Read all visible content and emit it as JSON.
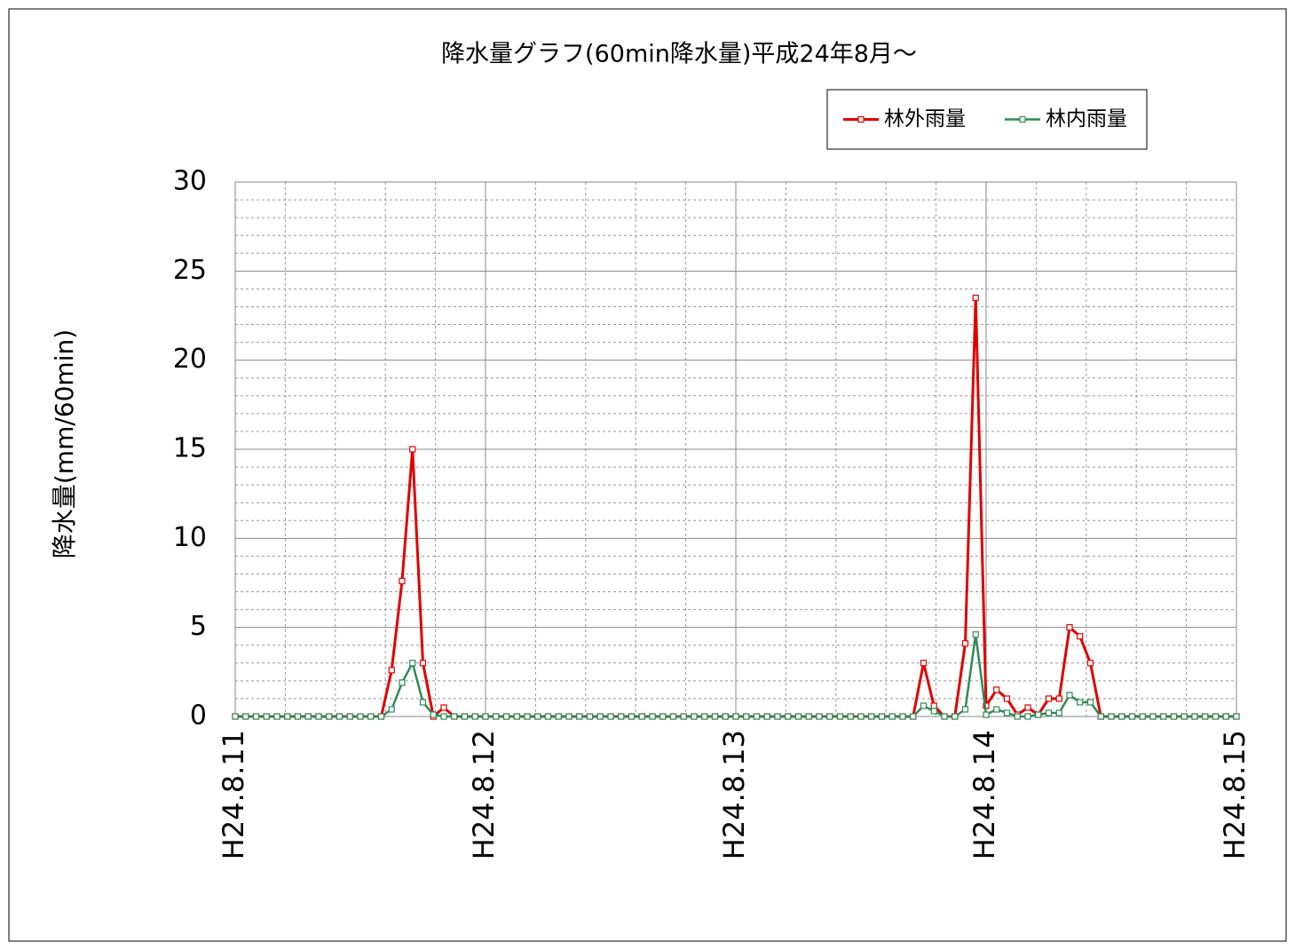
{
  "chart_data": {
    "type": "line",
    "title": "降水量グラフ(60min降水量)平成24年8月～",
    "y_label": "降水量(mm/60min)",
    "categories": [
      "H24.8.11",
      null,
      null,
      null,
      null,
      null,
      null,
      null,
      null,
      null,
      null,
      null,
      null,
      null,
      null,
      null,
      null,
      null,
      null,
      null,
      null,
      null,
      null,
      null,
      "H24.8.12",
      null,
      null,
      null,
      null,
      null,
      null,
      null,
      null,
      null,
      null,
      null,
      null,
      null,
      null,
      null,
      null,
      null,
      null,
      null,
      null,
      null,
      null,
      null,
      "H24.8.13",
      null,
      null,
      null,
      null,
      null,
      null,
      null,
      null,
      null,
      null,
      null,
      null,
      null,
      null,
      null,
      null,
      null,
      null,
      null,
      null,
      null,
      null,
      null,
      "H24.8.14",
      null,
      null,
      null,
      null,
      null,
      null,
      null,
      null,
      null,
      null,
      null,
      null,
      null,
      null,
      null,
      null,
      null,
      null,
      null,
      null,
      null,
      null,
      null,
      "H24.8.15"
    ],
    "series": [
      {
        "name": "林外雨量",
        "color": "#e00000",
        "values": [
          0,
          0,
          0,
          0,
          0,
          0,
          0,
          0,
          0,
          0,
          0,
          0,
          0,
          0,
          0,
          2.6,
          7.6,
          15,
          3,
          0,
          0.5,
          0,
          0,
          0,
          0,
          0,
          0,
          0,
          0,
          0,
          0,
          0,
          0,
          0,
          0,
          0,
          0,
          0,
          0,
          0,
          0,
          0,
          0,
          0,
          0,
          0,
          0,
          0,
          0,
          0,
          0,
          0,
          0,
          0,
          0,
          0,
          0,
          0,
          0,
          0,
          0,
          0,
          0,
          0,
          0,
          0,
          3,
          0.6,
          0,
          0,
          4.1,
          23.5,
          0.6,
          1.5,
          1,
          0.1,
          0.5,
          0.1,
          1,
          1,
          5,
          4.5,
          3,
          0,
          0,
          0,
          0,
          0,
          0,
          0,
          0,
          0,
          0,
          0,
          0,
          0,
          0
        ]
      },
      {
        "name": "林内雨量",
        "color": "#2e8b57",
        "values": [
          0,
          0,
          0,
          0,
          0,
          0,
          0,
          0,
          0,
          0,
          0,
          0,
          0,
          0,
          0,
          0.4,
          1.9,
          3,
          0.8,
          0.1,
          0,
          0,
          0,
          0,
          0,
          0,
          0,
          0,
          0,
          0,
          0,
          0,
          0,
          0,
          0,
          0,
          0,
          0,
          0,
          0,
          0,
          0,
          0,
          0,
          0,
          0,
          0,
          0,
          0,
          0,
          0,
          0,
          0,
          0,
          0,
          0,
          0,
          0,
          0,
          0,
          0,
          0,
          0,
          0,
          0,
          0,
          0.6,
          0.3,
          0,
          0,
          0.4,
          4.6,
          0.1,
          0.4,
          0.2,
          0,
          0,
          0.1,
          0.2,
          0.2,
          1.2,
          0.8,
          0.8,
          0,
          0,
          0,
          0,
          0,
          0,
          0,
          0,
          0,
          0,
          0,
          0,
          0,
          0
        ]
      }
    ],
    "ylim": [
      0,
      30
    ],
    "yticks": [
      0,
      5,
      10,
      15,
      20,
      25,
      30
    ],
    "grid": true,
    "legend": "top-right"
  }
}
